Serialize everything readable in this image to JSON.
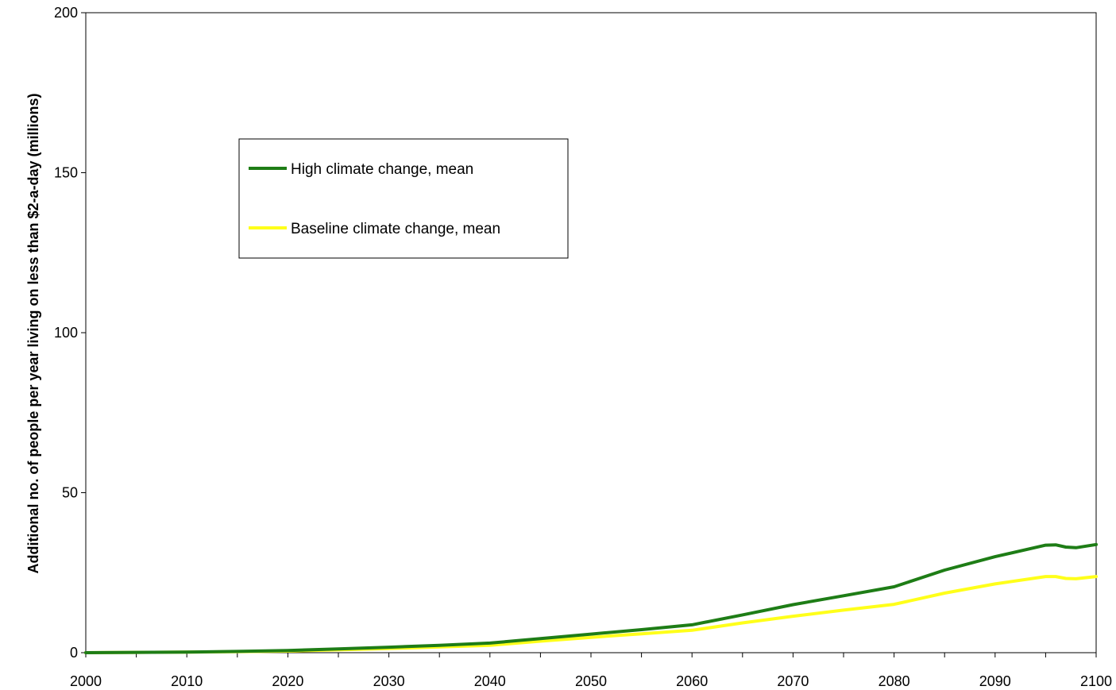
{
  "chart_data": {
    "type": "line",
    "title": "",
    "xlabel": "",
    "ylabel": "Additional no. of people per year living on less than $2-a-day (millions)",
    "xlim": [
      2000,
      2100
    ],
    "ylim": [
      0,
      200
    ],
    "x_ticks": [
      2000,
      2010,
      2020,
      2030,
      2040,
      2050,
      2060,
      2070,
      2080,
      2090,
      2100
    ],
    "y_ticks": [
      0,
      50,
      100,
      150,
      200
    ],
    "grid": false,
    "legend_position": "upper-left inside plot",
    "x": [
      2000,
      2005,
      2010,
      2015,
      2020,
      2025,
      2030,
      2035,
      2040,
      2045,
      2050,
      2055,
      2060,
      2065,
      2070,
      2075,
      2080,
      2085,
      2090,
      2095,
      2096,
      2097,
      2098,
      2100
    ],
    "series": [
      {
        "name": "High climate change, mean",
        "color": "#1e7d16",
        "values": [
          0,
          0.1,
          0.2,
          0.4,
          0.7,
          1.2,
          1.7,
          2.3,
          3.0,
          4.4,
          5.8,
          7.2,
          8.7,
          11.8,
          15.0,
          17.8,
          20.6,
          25.8,
          30.0,
          33.6,
          33.7,
          33.0,
          32.8,
          33.8
        ]
      },
      {
        "name": "Baseline climate change, mean",
        "color": "#ffff1a",
        "values": [
          0,
          0.1,
          0.2,
          0.3,
          0.5,
          0.9,
          1.3,
          1.8,
          2.3,
          3.6,
          4.8,
          5.9,
          7.0,
          9.3,
          11.4,
          13.3,
          15.1,
          18.6,
          21.5,
          23.8,
          23.8,
          23.2,
          23.1,
          23.8
        ]
      }
    ]
  }
}
